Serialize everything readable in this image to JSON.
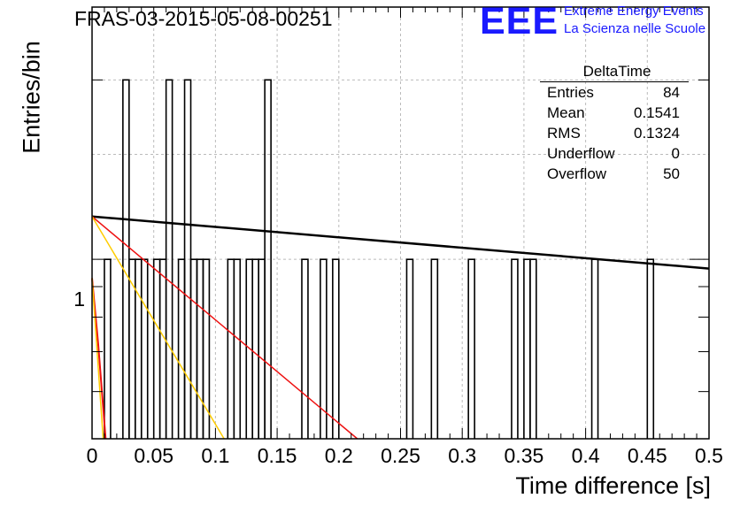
{
  "header": {
    "run_id": "FRAS-03-2015-05-08-00251",
    "logo_text": "EEE",
    "logo_line1": "Extreme Energy Events",
    "logo_line2": "La Scienza nelle Scuole",
    "logo_color": "#1a1aff"
  },
  "stats_box": {
    "title": "DeltaTime",
    "rows": [
      {
        "label": "Entries",
        "value": "84"
      },
      {
        "label": "Mean",
        "value": "0.1541"
      },
      {
        "label": "RMS",
        "value": "0.1324"
      },
      {
        "label": "Underflow",
        "value": "0"
      },
      {
        "label": "Overflow",
        "value": "50"
      }
    ]
  },
  "chart_data": {
    "type": "histogram",
    "title": "FRAS-03-2015-05-08-00251",
    "xlabel": "Time difference [s]",
    "ylabel": "Entries/bin",
    "xlim": [
      0,
      0.5
    ],
    "ylim_log": [
      0.5,
      2.65
    ],
    "yscale": "log",
    "grid": true,
    "x_ticks": [
      "0",
      "0.05",
      "0.1",
      "0.15",
      "0.2",
      "0.25",
      "0.3",
      "0.35",
      "0.4",
      "0.45",
      "0.5"
    ],
    "y_ticks": [
      "1"
    ],
    "bin_width": 0.005,
    "histogram_color": "#000000",
    "bins": [
      {
        "x": 0.01,
        "count": 1
      },
      {
        "x": 0.025,
        "count": 2
      },
      {
        "x": 0.03,
        "count": 1
      },
      {
        "x": 0.035,
        "count": 1
      },
      {
        "x": 0.04,
        "count": 1
      },
      {
        "x": 0.05,
        "count": 1
      },
      {
        "x": 0.055,
        "count": 1
      },
      {
        "x": 0.06,
        "count": 2
      },
      {
        "x": 0.07,
        "count": 1
      },
      {
        "x": 0.075,
        "count": 2
      },
      {
        "x": 0.08,
        "count": 1
      },
      {
        "x": 0.085,
        "count": 1
      },
      {
        "x": 0.09,
        "count": 1
      },
      {
        "x": 0.11,
        "count": 1
      },
      {
        "x": 0.115,
        "count": 1
      },
      {
        "x": 0.125,
        "count": 1
      },
      {
        "x": 0.13,
        "count": 1
      },
      {
        "x": 0.135,
        "count": 1
      },
      {
        "x": 0.14,
        "count": 2
      },
      {
        "x": 0.17,
        "count": 1
      },
      {
        "x": 0.185,
        "count": 1
      },
      {
        "x": 0.195,
        "count": 1
      },
      {
        "x": 0.255,
        "count": 1
      },
      {
        "x": 0.275,
        "count": 1
      },
      {
        "x": 0.305,
        "count": 1
      },
      {
        "x": 0.34,
        "count": 1
      },
      {
        "x": 0.35,
        "count": 1
      },
      {
        "x": 0.355,
        "count": 1
      },
      {
        "x": 0.405,
        "count": 1
      },
      {
        "x": 0.45,
        "count": 1
      }
    ],
    "fits": [
      {
        "color": "#000000",
        "width": 2.5,
        "points": [
          [
            0.0,
            1.18
          ],
          [
            0.5,
            0.965
          ]
        ]
      },
      {
        "color": "#ee1111",
        "width": 1.5,
        "points": [
          [
            0.0,
            1.18
          ],
          [
            0.215,
            0.5
          ]
        ]
      },
      {
        "color": "#ffcc00",
        "width": 1.5,
        "points": [
          [
            0.0,
            1.18
          ],
          [
            0.107,
            0.5
          ]
        ]
      },
      {
        "color": "#ee1111",
        "width": 2,
        "points": [
          [
            0.0,
            0.93
          ],
          [
            0.005,
            0.72
          ],
          [
            0.008,
            0.6
          ],
          [
            0.011,
            0.5
          ]
        ]
      },
      {
        "color": "#ffcc00",
        "width": 1.5,
        "points": [
          [
            0.0,
            0.93
          ],
          [
            0.009,
            0.5
          ]
        ]
      }
    ]
  }
}
